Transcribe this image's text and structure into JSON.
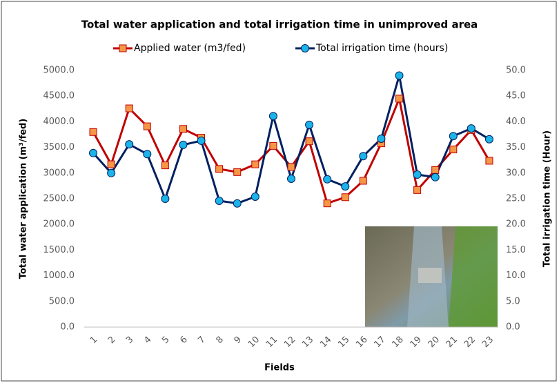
{
  "chart_data": {
    "type": "line",
    "title": "Total water application and total irrigation time in unimproved area",
    "x_label": "Fields",
    "y_label": "Total water application  (m³/fed)",
    "y2_label": "Total irrigation time (Hour)",
    "categories": [
      "1",
      "2",
      "3",
      "4",
      "5",
      "6",
      "7",
      "8",
      "9",
      "10",
      "11",
      "12",
      "13",
      "14",
      "15",
      "16",
      "17",
      "18",
      "19",
      "20",
      "21",
      "22",
      "23"
    ],
    "series": [
      {
        "name": "Applied water (m3/fed)",
        "color": "#c00000",
        "marker_color": "#f79646",
        "marker": "square",
        "values": [
          3800,
          3170,
          4260,
          3910,
          3150,
          3860,
          3690,
          3080,
          3020,
          3170,
          3530,
          3120,
          3620,
          2410,
          2530,
          2850,
          3580,
          4450,
          2670,
          3060,
          3460,
          3840,
          3240
        ]
      },
      {
        "name": "Total irrigation time (hours)",
        "color": "#002060",
        "marker_color": "#1cb3e8",
        "marker": "circle",
        "axis": "y2",
        "values": [
          33.9,
          30.0,
          35.6,
          33.7,
          25.0,
          35.5,
          36.3,
          24.6,
          24.1,
          25.4,
          41.1,
          28.9,
          39.4,
          28.8,
          27.4,
          33.3,
          36.7,
          49.0,
          29.7,
          29.2,
          37.2,
          38.7,
          36.6
        ]
      }
    ],
    "ylim": [
      0,
      5000
    ],
    "yticks": [
      {
        "value": 0,
        "label": "0.0"
      },
      {
        "value": 500,
        "label": "500.0"
      },
      {
        "value": 1000,
        "label": "1000.0"
      },
      {
        "value": 1500,
        "label": "1500.0"
      },
      {
        "value": 2000,
        "label": "2000.0"
      },
      {
        "value": 2500,
        "label": "2500.0"
      },
      {
        "value": 3000,
        "label": "3000.0"
      },
      {
        "value": 3500,
        "label": "3500.0"
      },
      {
        "value": 4000,
        "label": "4000.0"
      },
      {
        "value": 4500,
        "label": "4500.0"
      },
      {
        "value": 5000,
        "label": "5000.0"
      }
    ],
    "y2lim": [
      0,
      50
    ],
    "y2ticks": [
      {
        "value": 0,
        "label": "0.0"
      },
      {
        "value": 5,
        "label": "5.0"
      },
      {
        "value": 10,
        "label": "10.0"
      },
      {
        "value": 15,
        "label": "15.0"
      },
      {
        "value": 20,
        "label": "20.0"
      },
      {
        "value": 25,
        "label": "25.0"
      },
      {
        "value": 30,
        "label": "30.0"
      },
      {
        "value": 35,
        "label": "35.0"
      },
      {
        "value": 40,
        "label": "40.0"
      },
      {
        "value": 45,
        "label": "45.0"
      },
      {
        "value": 50,
        "label": "50.0"
      }
    ]
  }
}
